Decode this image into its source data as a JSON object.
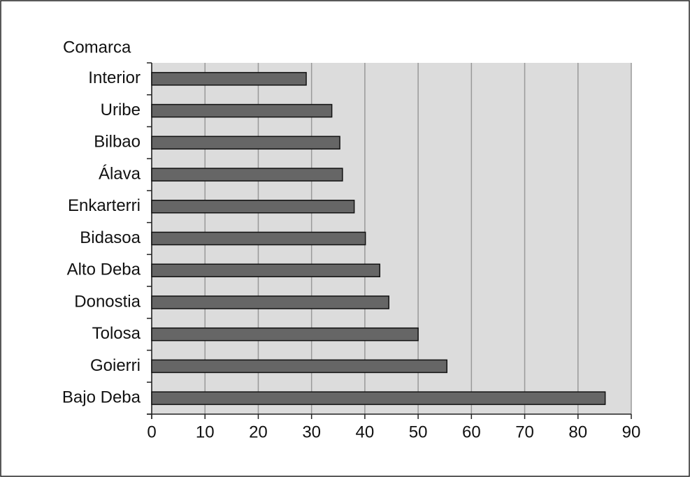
{
  "chart_data": {
    "type": "barh",
    "y_label": "Comarca",
    "categories": [
      "Interior",
      "Uribe",
      "Bilbao",
      "Álava",
      "Enkarterri",
      "Bidasoa",
      "Alto Deba",
      "Donostia",
      "Tolosa",
      "Goierri",
      "Bajo Deba"
    ],
    "values": [
      29.0,
      33.8,
      35.3,
      35.8,
      38.0,
      40.1,
      42.8,
      44.5,
      50.0,
      55.4,
      85.1
    ],
    "color": "#666666",
    "xlim": [
      0,
      90
    ],
    "xticks": [
      0,
      10,
      20,
      30,
      40,
      50,
      60,
      70,
      80,
      90
    ],
    "grid": true
  }
}
